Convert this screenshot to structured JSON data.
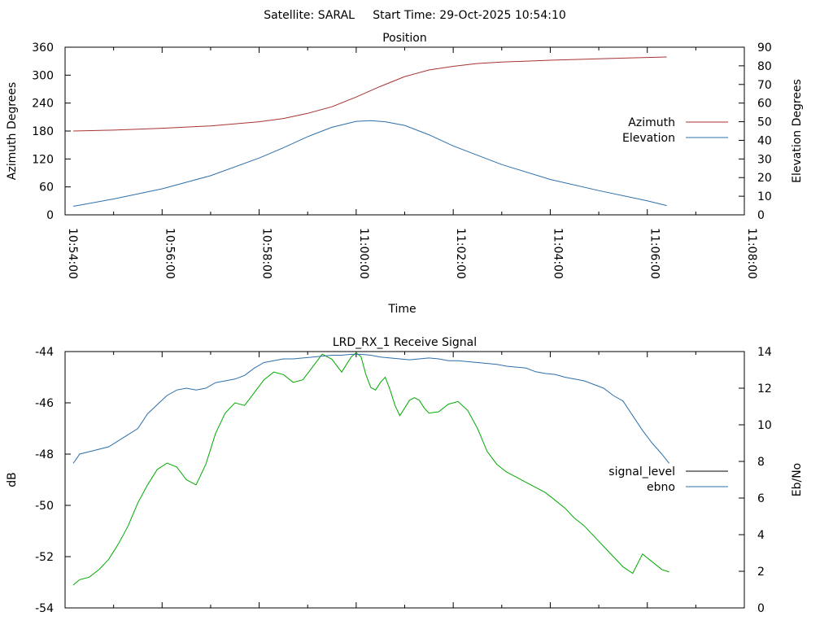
{
  "header": {
    "title": "Satellite: SARAL     Start Time: 29-Oct-2025 10:54:10"
  },
  "chart_data": [
    {
      "type": "line",
      "title": "Position",
      "xlabel": "Time",
      "ylabel": "Azimuth Degrees",
      "y2label": "Elevation Degrees",
      "xlim_minutes": [
        0,
        14
      ],
      "x_ticks": [
        {
          "t": 0,
          "label": "10:54:00"
        },
        {
          "t": 2,
          "label": "10:56:00"
        },
        {
          "t": 4,
          "label": "10:58:00"
        },
        {
          "t": 6,
          "label": "11:00:00"
        },
        {
          "t": 8,
          "label": "11:02:00"
        },
        {
          "t": 10,
          "label": "11:04:00"
        },
        {
          "t": 12,
          "label": "11:06:00"
        },
        {
          "t": 14,
          "label": "11:08:00"
        }
      ],
      "ylim": [
        0,
        360
      ],
      "y_ticks": [
        0,
        60,
        120,
        180,
        240,
        300,
        360
      ],
      "y2lim": [
        0,
        90
      ],
      "y2_ticks": [
        0,
        10,
        20,
        30,
        40,
        50,
        60,
        70,
        80,
        90
      ],
      "legend_position": "right",
      "series": [
        {
          "name": "Azimuth",
          "axis": "y",
          "color": "#a83232",
          "x": [
            0.17,
            1,
            2,
            3,
            4,
            4.5,
            5,
            5.5,
            6,
            6.5,
            7,
            7.5,
            8,
            8.5,
            9,
            10,
            11,
            12,
            12.4
          ],
          "values": [
            180,
            182,
            186,
            191,
            200,
            207,
            218,
            232,
            253,
            276,
            297,
            311,
            319,
            325,
            328,
            332,
            335,
            338,
            339
          ]
        },
        {
          "name": "Elevation",
          "axis": "y2",
          "color": "#2e6fab",
          "x": [
            0.17,
            1,
            2,
            3,
            4,
            4.5,
            5,
            5.5,
            6,
            6.3,
            6.6,
            7,
            7.5,
            8,
            8.5,
            9,
            10,
            11,
            12,
            12.4
          ],
          "values": [
            4.6,
            8.5,
            14,
            21,
            30.5,
            36,
            42,
            47,
            50.2,
            50.6,
            50,
            48,
            43,
            37,
            32,
            27,
            19,
            13,
            7.5,
            5
          ]
        }
      ]
    },
    {
      "type": "line",
      "title": "LRD_RX_1 Receive Signal",
      "ylabel": "dB",
      "y2label": "Eb/No",
      "ylim": [
        -54,
        -44
      ],
      "y_ticks": [
        -54,
        -52,
        -50,
        -48,
        -46,
        -44
      ],
      "y2lim": [
        0,
        14
      ],
      "y2_ticks": [
        0,
        2,
        4,
        6,
        8,
        10,
        12,
        14
      ],
      "legend_position": "right",
      "series": [
        {
          "name": "signal_level",
          "axis": "y",
          "color": "#00aa00",
          "legend_color": "#000000",
          "x": [
            0.17,
            0.3,
            0.5,
            0.7,
            0.9,
            1.1,
            1.3,
            1.5,
            1.7,
            1.9,
            2.1,
            2.3,
            2.5,
            2.7,
            2.9,
            3.1,
            3.3,
            3.5,
            3.7,
            3.9,
            4.1,
            4.3,
            4.5,
            4.7,
            4.9,
            5.1,
            5.3,
            5.5,
            5.7,
            5.9,
            6.0,
            6.1,
            6.2,
            6.3,
            6.4,
            6.5,
            6.6,
            6.7,
            6.8,
            6.9,
            7.0,
            7.1,
            7.2,
            7.3,
            7.4,
            7.5,
            7.7,
            7.9,
            8.1,
            8.3,
            8.5,
            8.7,
            8.9,
            9.1,
            9.3,
            9.5,
            9.7,
            9.9,
            10.1,
            10.3,
            10.5,
            10.7,
            10.9,
            11.1,
            11.3,
            11.5,
            11.7,
            11.9,
            12.1,
            12.3,
            12.45
          ],
          "values": [
            -53.1,
            -52.9,
            -52.8,
            -52.5,
            -52.1,
            -51.5,
            -50.8,
            -49.9,
            -49.2,
            -48.6,
            -48.35,
            -48.5,
            -49.0,
            -49.2,
            -48.4,
            -47.2,
            -46.4,
            -46.0,
            -46.1,
            -45.6,
            -45.1,
            -44.8,
            -44.9,
            -45.2,
            -45.1,
            -44.6,
            -44.1,
            -44.3,
            -44.8,
            -44.2,
            -44.05,
            -44.2,
            -44.9,
            -45.4,
            -45.5,
            -45.2,
            -45.0,
            -45.5,
            -46.1,
            -46.5,
            -46.2,
            -45.9,
            -45.8,
            -45.9,
            -46.2,
            -46.4,
            -46.35,
            -46.05,
            -45.95,
            -46.3,
            -47.0,
            -47.9,
            -48.4,
            -48.7,
            -48.9,
            -49.1,
            -49.3,
            -49.5,
            -49.8,
            -50.1,
            -50.5,
            -50.8,
            -51.2,
            -51.6,
            -52.0,
            -52.4,
            -52.65,
            -51.9,
            -52.2,
            -52.5,
            -52.6
          ]
        },
        {
          "name": "ebno",
          "axis": "y2",
          "color": "#2e6fab",
          "x": [
            0.17,
            0.3,
            0.6,
            0.9,
            1.2,
            1.5,
            1.7,
            1.9,
            2.1,
            2.3,
            2.5,
            2.7,
            2.9,
            3.1,
            3.3,
            3.5,
            3.7,
            3.9,
            4.1,
            4.3,
            4.5,
            4.7,
            4.9,
            5.1,
            5.3,
            5.5,
            5.7,
            5.9,
            6.1,
            6.3,
            6.5,
            6.7,
            6.9,
            7.1,
            7.3,
            7.5,
            7.7,
            7.9,
            8.1,
            8.3,
            8.5,
            8.7,
            8.9,
            9.1,
            9.3,
            9.5,
            9.7,
            9.9,
            10.1,
            10.3,
            10.5,
            10.7,
            10.9,
            11.1,
            11.3,
            11.5,
            11.7,
            11.9,
            12.1,
            12.3,
            12.45
          ],
          "values": [
            7.9,
            8.4,
            8.6,
            8.8,
            9.3,
            9.8,
            10.6,
            11.1,
            11.6,
            11.9,
            12.0,
            11.9,
            12.0,
            12.3,
            12.4,
            12.5,
            12.7,
            13.1,
            13.4,
            13.5,
            13.6,
            13.6,
            13.65,
            13.7,
            13.75,
            13.8,
            13.8,
            13.85,
            13.85,
            13.8,
            13.7,
            13.65,
            13.6,
            13.55,
            13.6,
            13.65,
            13.6,
            13.5,
            13.5,
            13.45,
            13.4,
            13.35,
            13.3,
            13.2,
            13.15,
            13.1,
            12.9,
            12.8,
            12.75,
            12.6,
            12.5,
            12.4,
            12.2,
            12.0,
            11.6,
            11.3,
            10.5,
            9.7,
            9.0,
            8.4,
            7.9
          ]
        }
      ]
    }
  ]
}
